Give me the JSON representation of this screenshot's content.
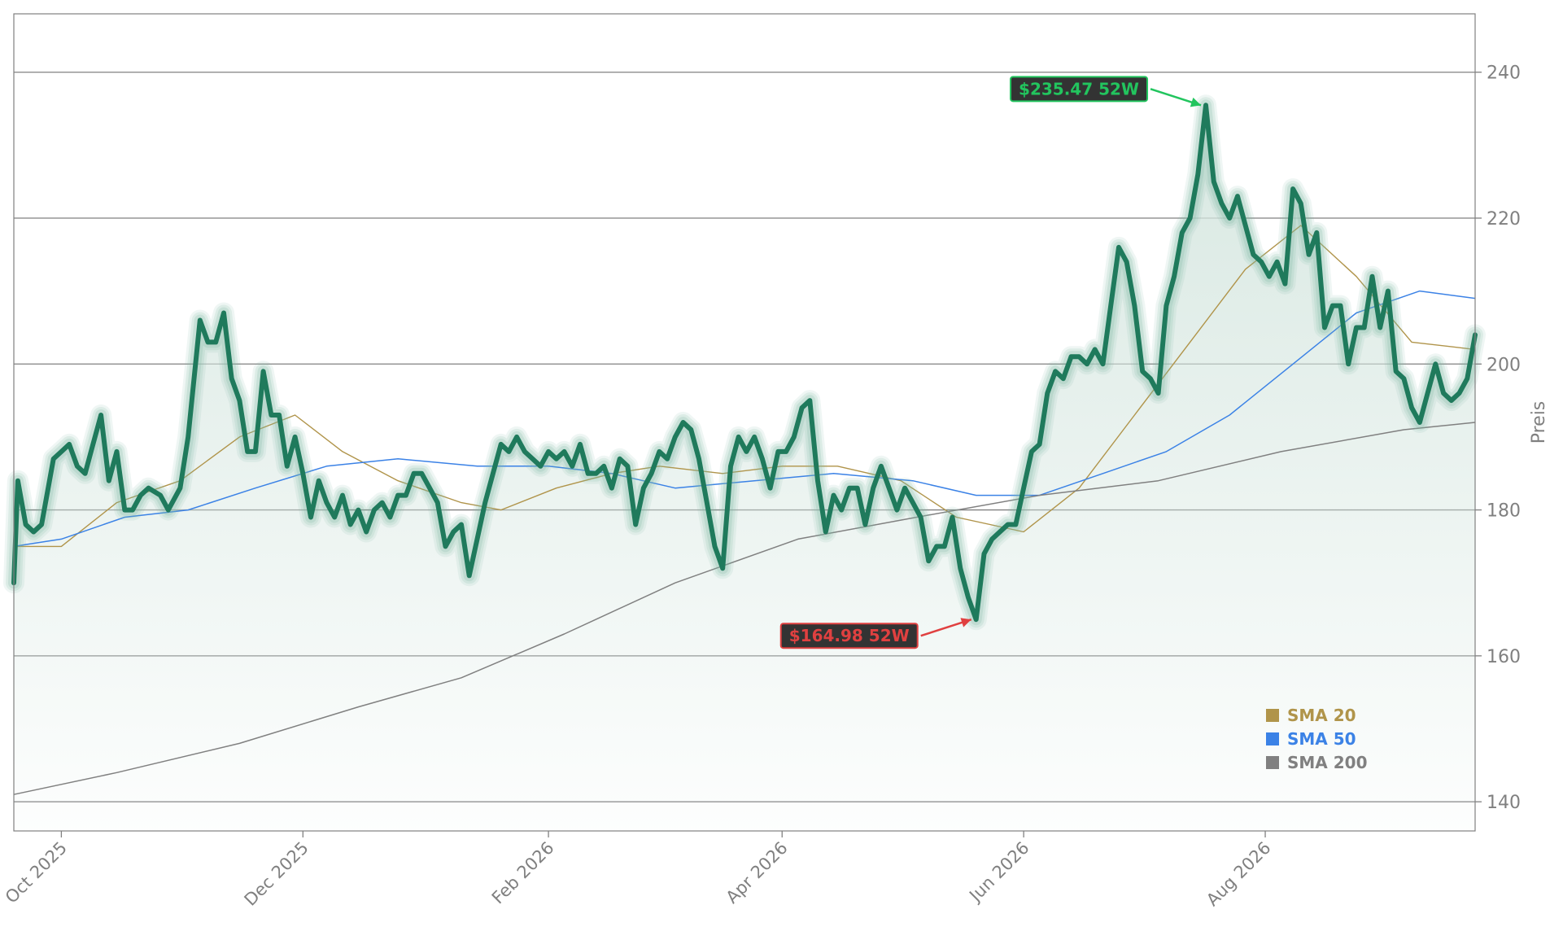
{
  "chart_data": {
    "type": "line",
    "title": "",
    "xlabel": "",
    "ylabel": "Preis",
    "ylim": [
      136,
      248
    ],
    "y_ticks": [
      140,
      160,
      180,
      200,
      220,
      240
    ],
    "x_ticks": [
      {
        "date": "2025-10-01",
        "label": "Oct 2025"
      },
      {
        "date": "2025-12-01",
        "label": "Dec 2025"
      },
      {
        "date": "2026-02-01",
        "label": "Feb 2026"
      },
      {
        "date": "2026-04-01",
        "label": "Apr 2026"
      },
      {
        "date": "2026-06-01",
        "label": "Jun 2026"
      },
      {
        "date": "2026-08-01",
        "label": "Aug 2026"
      }
    ],
    "xlim": [
      "2025-09-19",
      "2026-09-23"
    ],
    "grid": "horizontal",
    "y_axis_side": "right",
    "legend_position": "lower-right",
    "colors": {
      "price": "#1f7a5c",
      "price_glow": "#7fb8a3",
      "area_fill": "#dde9e4",
      "sma20": "#b0944a",
      "sma50": "#3b82e6",
      "sma200": "#808080",
      "high_marker": "#22c55e",
      "low_marker": "#e04040",
      "grid": "#808080",
      "axis_text": "#808080"
    },
    "series": [
      {
        "name": "",
        "role": "price",
        "points": [
          [
            "2025-09-19",
            170
          ],
          [
            "2025-09-20",
            184
          ],
          [
            "2025-09-22",
            178
          ],
          [
            "2025-09-24",
            177
          ],
          [
            "2025-09-26",
            178
          ],
          [
            "2025-09-29",
            187
          ],
          [
            "2025-10-01",
            188
          ],
          [
            "2025-10-03",
            189
          ],
          [
            "2025-10-05",
            186
          ],
          [
            "2025-10-07",
            185
          ],
          [
            "2025-10-09",
            189
          ],
          [
            "2025-10-11",
            193
          ],
          [
            "2025-10-13",
            184
          ],
          [
            "2025-10-15",
            188
          ],
          [
            "2025-10-17",
            180
          ],
          [
            "2025-10-19",
            180
          ],
          [
            "2025-10-21",
            182
          ],
          [
            "2025-10-23",
            183
          ],
          [
            "2025-10-26",
            182
          ],
          [
            "2025-10-28",
            180
          ],
          [
            "2025-10-31",
            183
          ],
          [
            "2025-11-02",
            190
          ],
          [
            "2025-11-05",
            206
          ],
          [
            "2025-11-07",
            203
          ],
          [
            "2025-11-09",
            203
          ],
          [
            "2025-11-11",
            207
          ],
          [
            "2025-11-13",
            198
          ],
          [
            "2025-11-15",
            195
          ],
          [
            "2025-11-17",
            188
          ],
          [
            "2025-11-19",
            188
          ],
          [
            "2025-11-21",
            199
          ],
          [
            "2025-11-23",
            193
          ],
          [
            "2025-11-25",
            193
          ],
          [
            "2025-11-27",
            186
          ],
          [
            "2025-11-29",
            190
          ],
          [
            "2025-12-01",
            185
          ],
          [
            "2025-12-03",
            179
          ],
          [
            "2025-12-05",
            184
          ],
          [
            "2025-12-07",
            181
          ],
          [
            "2025-12-09",
            179
          ],
          [
            "2025-12-11",
            182
          ],
          [
            "2025-12-13",
            178
          ],
          [
            "2025-12-15",
            180
          ],
          [
            "2025-12-17",
            177
          ],
          [
            "2025-12-19",
            180
          ],
          [
            "2025-12-21",
            181
          ],
          [
            "2025-12-23",
            179
          ],
          [
            "2025-12-25",
            182
          ],
          [
            "2025-12-27",
            182
          ],
          [
            "2025-12-29",
            185
          ],
          [
            "2025-12-31",
            185
          ],
          [
            "2026-01-02",
            183
          ],
          [
            "2026-01-04",
            181
          ],
          [
            "2026-01-06",
            175
          ],
          [
            "2026-01-08",
            177
          ],
          [
            "2026-01-10",
            178
          ],
          [
            "2026-01-12",
            171
          ],
          [
            "2026-01-14",
            176
          ],
          [
            "2026-01-16",
            181
          ],
          [
            "2026-01-18",
            185
          ],
          [
            "2026-01-20",
            189
          ],
          [
            "2026-01-22",
            188
          ],
          [
            "2026-01-24",
            190
          ],
          [
            "2026-01-26",
            188
          ],
          [
            "2026-01-28",
            187
          ],
          [
            "2026-01-30",
            186
          ],
          [
            "2026-02-01",
            188
          ],
          [
            "2026-02-03",
            187
          ],
          [
            "2026-02-05",
            188
          ],
          [
            "2026-02-07",
            186
          ],
          [
            "2026-02-09",
            189
          ],
          [
            "2026-02-11",
            185
          ],
          [
            "2026-02-13",
            185
          ],
          [
            "2026-02-15",
            186
          ],
          [
            "2026-02-17",
            183
          ],
          [
            "2026-02-19",
            187
          ],
          [
            "2026-02-21",
            186
          ],
          [
            "2026-02-23",
            178
          ],
          [
            "2026-02-25",
            183
          ],
          [
            "2026-02-27",
            185
          ],
          [
            "2026-03-01",
            188
          ],
          [
            "2026-03-03",
            187
          ],
          [
            "2026-03-05",
            190
          ],
          [
            "2026-03-07",
            192
          ],
          [
            "2026-03-09",
            191
          ],
          [
            "2026-03-11",
            187
          ],
          [
            "2026-03-13",
            181
          ],
          [
            "2026-03-15",
            175
          ],
          [
            "2026-03-17",
            172
          ],
          [
            "2026-03-19",
            186
          ],
          [
            "2026-03-21",
            190
          ],
          [
            "2026-03-23",
            188
          ],
          [
            "2026-03-25",
            190
          ],
          [
            "2026-03-27",
            187
          ],
          [
            "2026-03-29",
            183
          ],
          [
            "2026-03-31",
            188
          ],
          [
            "2026-04-02",
            188
          ],
          [
            "2026-04-04",
            190
          ],
          [
            "2026-04-06",
            194
          ],
          [
            "2026-04-08",
            195
          ],
          [
            "2026-04-10",
            184
          ],
          [
            "2026-04-12",
            177
          ],
          [
            "2026-04-14",
            182
          ],
          [
            "2026-04-16",
            180
          ],
          [
            "2026-04-18",
            183
          ],
          [
            "2026-04-20",
            183
          ],
          [
            "2026-04-22",
            178
          ],
          [
            "2026-04-24",
            183
          ],
          [
            "2026-04-26",
            186
          ],
          [
            "2026-04-28",
            183
          ],
          [
            "2026-04-30",
            180
          ],
          [
            "2026-05-02",
            183
          ],
          [
            "2026-05-04",
            181
          ],
          [
            "2026-05-06",
            179
          ],
          [
            "2026-05-08",
            173
          ],
          [
            "2026-05-10",
            175
          ],
          [
            "2026-05-12",
            175
          ],
          [
            "2026-05-14",
            179
          ],
          [
            "2026-05-16",
            172
          ],
          [
            "2026-05-18",
            168
          ],
          [
            "2026-05-20",
            164.98
          ],
          [
            "2026-05-22",
            174
          ],
          [
            "2026-05-24",
            176
          ],
          [
            "2026-05-26",
            177
          ],
          [
            "2026-05-28",
            178
          ],
          [
            "2026-05-30",
            178
          ],
          [
            "2026-06-01",
            183
          ],
          [
            "2026-06-03",
            188
          ],
          [
            "2026-06-05",
            189
          ],
          [
            "2026-06-07",
            196
          ],
          [
            "2026-06-09",
            199
          ],
          [
            "2026-06-11",
            198
          ],
          [
            "2026-06-13",
            201
          ],
          [
            "2026-06-15",
            201
          ],
          [
            "2026-06-17",
            200
          ],
          [
            "2026-06-19",
            202
          ],
          [
            "2026-06-21",
            200
          ],
          [
            "2026-06-23",
            208
          ],
          [
            "2026-06-25",
            216
          ],
          [
            "2026-06-27",
            214
          ],
          [
            "2026-06-29",
            208
          ],
          [
            "2026-07-01",
            199
          ],
          [
            "2026-07-03",
            198
          ],
          [
            "2026-07-05",
            196
          ],
          [
            "2026-07-07",
            208
          ],
          [
            "2026-07-09",
            212
          ],
          [
            "2026-07-11",
            218
          ],
          [
            "2026-07-13",
            220
          ],
          [
            "2026-07-15",
            226
          ],
          [
            "2026-07-17",
            235.47
          ],
          [
            "2026-07-19",
            225
          ],
          [
            "2026-07-21",
            222
          ],
          [
            "2026-07-23",
            220
          ],
          [
            "2026-07-25",
            223
          ],
          [
            "2026-07-27",
            219
          ],
          [
            "2026-07-29",
            215
          ],
          [
            "2026-07-31",
            214
          ],
          [
            "2026-08-02",
            212
          ],
          [
            "2026-08-04",
            214
          ],
          [
            "2026-08-06",
            211
          ],
          [
            "2026-08-08",
            224
          ],
          [
            "2026-08-10",
            222
          ],
          [
            "2026-08-12",
            215
          ],
          [
            "2026-08-14",
            218
          ],
          [
            "2026-08-16",
            205
          ],
          [
            "2026-08-18",
            208
          ],
          [
            "2026-08-20",
            208
          ],
          [
            "2026-08-22",
            200
          ],
          [
            "2026-08-24",
            205
          ],
          [
            "2026-08-26",
            205
          ],
          [
            "2026-08-28",
            212
          ],
          [
            "2026-08-30",
            205
          ],
          [
            "2026-09-01",
            210
          ],
          [
            "2026-09-03",
            199
          ],
          [
            "2026-09-05",
            198
          ],
          [
            "2026-09-07",
            194
          ],
          [
            "2026-09-09",
            192
          ],
          [
            "2026-09-11",
            196
          ],
          [
            "2026-09-13",
            200
          ],
          [
            "2026-09-15",
            196
          ],
          [
            "2026-09-17",
            195
          ],
          [
            "2026-09-19",
            196
          ],
          [
            "2026-09-21",
            198
          ],
          [
            "2026-09-23",
            204
          ]
        ]
      },
      {
        "name": "SMA 20",
        "role": "sma20",
        "points": [
          [
            "2025-09-19",
            175
          ],
          [
            "2025-10-01",
            175
          ],
          [
            "2025-10-15",
            181
          ],
          [
            "2025-10-31",
            184
          ],
          [
            "2025-11-15",
            190
          ],
          [
            "2025-11-29",
            193
          ],
          [
            "2025-12-11",
            188
          ],
          [
            "2025-12-25",
            184
          ],
          [
            "2026-01-10",
            181
          ],
          [
            "2026-01-20",
            180
          ],
          [
            "2026-02-03",
            183
          ],
          [
            "2026-02-17",
            185
          ],
          [
            "2026-03-01",
            186
          ],
          [
            "2026-03-17",
            185
          ],
          [
            "2026-04-01",
            186
          ],
          [
            "2026-04-15",
            186
          ],
          [
            "2026-05-01",
            184
          ],
          [
            "2026-05-15",
            179
          ],
          [
            "2026-06-01",
            177
          ],
          [
            "2026-06-15",
            183
          ],
          [
            "2026-06-29",
            193
          ],
          [
            "2026-07-13",
            203
          ],
          [
            "2026-07-27",
            213
          ],
          [
            "2026-08-10",
            219
          ],
          [
            "2026-08-24",
            212
          ],
          [
            "2026-09-07",
            203
          ],
          [
            "2026-09-23",
            202
          ]
        ]
      },
      {
        "name": "SMA 50",
        "role": "sma50",
        "points": [
          [
            "2025-09-19",
            175
          ],
          [
            "2025-10-01",
            176
          ],
          [
            "2025-10-17",
            179
          ],
          [
            "2025-11-02",
            180
          ],
          [
            "2025-11-19",
            183
          ],
          [
            "2025-12-07",
            186
          ],
          [
            "2025-12-25",
            187
          ],
          [
            "2026-01-14",
            186
          ],
          [
            "2026-02-01",
            186
          ],
          [
            "2026-02-17",
            185
          ],
          [
            "2026-03-05",
            183
          ],
          [
            "2026-03-25",
            184
          ],
          [
            "2026-04-14",
            185
          ],
          [
            "2026-05-04",
            184
          ],
          [
            "2026-05-20",
            182
          ],
          [
            "2026-06-05",
            182
          ],
          [
            "2026-06-21",
            185
          ],
          [
            "2026-07-07",
            188
          ],
          [
            "2026-07-23",
            193
          ],
          [
            "2026-08-08",
            200
          ],
          [
            "2026-08-24",
            207
          ],
          [
            "2026-09-09",
            210
          ],
          [
            "2026-09-23",
            209
          ]
        ]
      },
      {
        "name": "SMA 200",
        "role": "sma200",
        "points": [
          [
            "2025-09-19",
            141
          ],
          [
            "2025-10-15",
            144
          ],
          [
            "2025-11-15",
            148
          ],
          [
            "2025-12-15",
            153
          ],
          [
            "2026-01-10",
            157
          ],
          [
            "2026-02-05",
            163
          ],
          [
            "2026-03-05",
            170
          ],
          [
            "2026-04-05",
            176
          ],
          [
            "2026-05-05",
            179
          ],
          [
            "2026-06-05",
            182
          ],
          [
            "2026-07-05",
            184
          ],
          [
            "2026-08-05",
            188
          ],
          [
            "2026-09-05",
            191
          ],
          [
            "2026-09-23",
            192
          ]
        ]
      }
    ],
    "annotations": [
      {
        "text": "$235.47 52W",
        "date": "2026-07-17",
        "value": 235.47,
        "kind": "high"
      },
      {
        "text": "$164.98 52W",
        "date": "2026-05-20",
        "value": 164.98,
        "kind": "low"
      }
    ],
    "legend": [
      {
        "label": "SMA 20",
        "color": "#b0944a"
      },
      {
        "label": "SMA 50",
        "color": "#3b82e6"
      },
      {
        "label": "SMA 200",
        "color": "#808080"
      }
    ]
  }
}
